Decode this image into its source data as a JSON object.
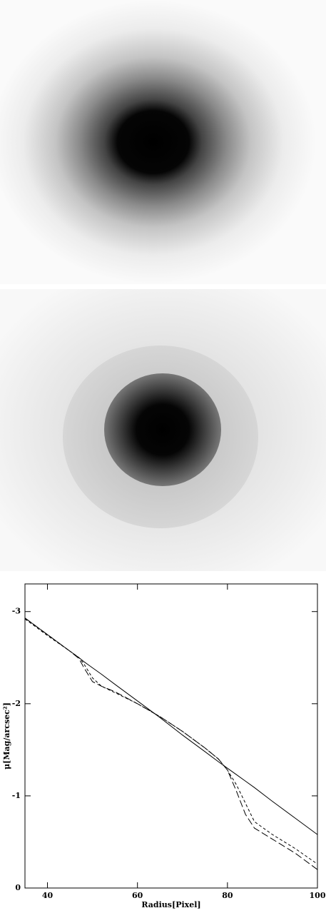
{
  "chart_data": {
    "type": "line",
    "xlabel": "Radius[Pixel]",
    "ylabel": "μ[Mag/arcsec²]",
    "x": [
      35,
      40,
      45,
      47,
      48,
      50,
      52,
      55,
      60,
      65,
      70,
      75,
      78,
      80,
      82,
      84,
      86,
      90,
      95,
      100
    ],
    "series": [
      {
        "color": "#000000",
        "linestyle": "solid",
        "values": [
          -2.93,
          -2.75,
          -2.57,
          -2.5,
          -2.46,
          -2.39,
          -2.32,
          -2.21,
          -2.03,
          -1.85,
          -1.66,
          -1.48,
          -1.37,
          -1.3,
          -1.23,
          -1.16,
          -1.09,
          -0.94,
          -0.76,
          -0.58
        ]
      },
      {
        "color": "#000000",
        "linestyle": "dashed",
        "values": [
          -2.92,
          -2.74,
          -2.57,
          -2.5,
          -2.44,
          -2.28,
          -2.19,
          -2.12,
          -2.0,
          -1.86,
          -1.7,
          -1.52,
          -1.4,
          -1.28,
          -1.12,
          -0.92,
          -0.72,
          -0.58,
          -0.43,
          -0.26
        ]
      },
      {
        "color": "#000000",
        "linestyle": "longdash",
        "values": [
          -2.93,
          -2.75,
          -2.57,
          -2.49,
          -2.4,
          -2.24,
          -2.19,
          -2.13,
          -2.0,
          -1.86,
          -1.7,
          -1.52,
          -1.4,
          -1.28,
          -1.05,
          -0.8,
          -0.65,
          -0.53,
          -0.38,
          -0.2
        ]
      }
    ],
    "xlim": [
      35,
      100
    ],
    "xticks": [
      40,
      60,
      80,
      100
    ],
    "ylim": [
      0,
      -3.3
    ],
    "yticks": [
      0,
      -1,
      -2,
      -3
    ],
    "grid": false
  }
}
